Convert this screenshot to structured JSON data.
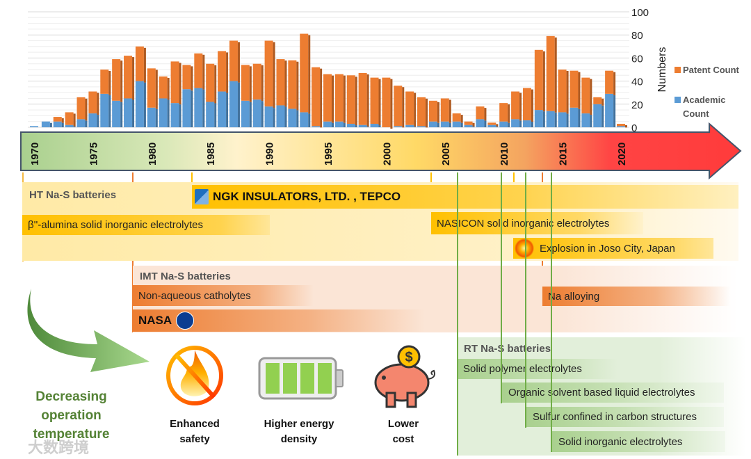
{
  "chart_data": {
    "type": "bar",
    "stacked": true,
    "title": "",
    "xlabel": "",
    "ylabel": "Numbers",
    "ylim": [
      0,
      100
    ],
    "yticks": [
      "0",
      "20",
      "40",
      "60",
      "80",
      "100"
    ],
    "grid": true,
    "legend_position": "right",
    "x": [
      1970,
      1971,
      1972,
      1973,
      1974,
      1975,
      1976,
      1977,
      1978,
      1979,
      1980,
      1981,
      1982,
      1983,
      1984,
      1985,
      1986,
      1987,
      1988,
      1989,
      1990,
      1991,
      1992,
      1993,
      1994,
      1995,
      1996,
      1997,
      1998,
      1999,
      2000,
      2001,
      2002,
      2003,
      2004,
      2005,
      2006,
      2007,
      2008,
      2009,
      2010,
      2011,
      2012,
      2013,
      2014,
      2015,
      2016,
      2017,
      2018,
      2019,
      2020
    ],
    "xtick_labels": [
      "1970",
      "1975",
      "1980",
      "1985",
      "1990",
      "1995",
      "2000",
      "2005",
      "2010",
      "2015",
      "2020"
    ],
    "series": [
      {
        "name": "Academic Count",
        "color": "#5b9bd5",
        "values": [
          1,
          5,
          5,
          2,
          7,
          12,
          29,
          23,
          25,
          40,
          17,
          25,
          21,
          33,
          34,
          22,
          31,
          40,
          23,
          24,
          18,
          19,
          16,
          13,
          1,
          5,
          5,
          3,
          2,
          3,
          0,
          1,
          2,
          1,
          5,
          5,
          5,
          2,
          7,
          2,
          5,
          7,
          6,
          15,
          14,
          13,
          17,
          12,
          20,
          29,
          1
        ]
      },
      {
        "name": "Patent Count",
        "color": "#ed7d31",
        "values": [
          0,
          0,
          4,
          11,
          19,
          19,
          21,
          36,
          37,
          30,
          34,
          19,
          36,
          21,
          30,
          33,
          35,
          35,
          31,
          31,
          57,
          40,
          42,
          68,
          51,
          41,
          41,
          42,
          45,
          40,
          43,
          35,
          29,
          25,
          18,
          20,
          7,
          3,
          11,
          2,
          16,
          24,
          28,
          52,
          65,
          37,
          32,
          31,
          6,
          20,
          2
        ]
      }
    ]
  },
  "timeline": {
    "ht": {
      "label": "HT Na-S batteries",
      "ngk": "NGK INSULATORS, LTD. , TEPCO",
      "ngk_logo": "NGK",
      "beta": "β''-alumina solid inorganic electrolytes",
      "nasicon": "NASICON solid inorganic electrolytes",
      "explosion": "Explosion in Joso City, Japan"
    },
    "imt": {
      "label": "IMT Na-S batteries",
      "catholytes": "Non-aqueous  catholytes",
      "nasa": "NASA",
      "nasa_logo": "NASA",
      "alloying": "Na alloying"
    },
    "rt": {
      "label": "RT Na-S batteries",
      "items": [
        "Solid polymer electrolytes",
        "Organic solvent based liquid electrolytes",
        "Sulfur confined in carbon structures",
        "Solid inorganic electrolytes"
      ]
    }
  },
  "trend": {
    "line1": "Decreasing",
    "line2": "operation",
    "line3": "temperature"
  },
  "features": [
    {
      "line1": "Enhanced",
      "line2": "safety",
      "icon": "no-fire-icon"
    },
    {
      "line1": "Higher energy",
      "line2": "density",
      "icon": "battery-icon"
    },
    {
      "line1": "Lower",
      "line2": "cost",
      "icon": "piggy-bank-icon"
    }
  ],
  "watermark": "大数跨境",
  "colors": {
    "ht": "#ffc000",
    "imt": "#ed7d31",
    "rt": "#a9d08e",
    "green_text": "#548235"
  }
}
